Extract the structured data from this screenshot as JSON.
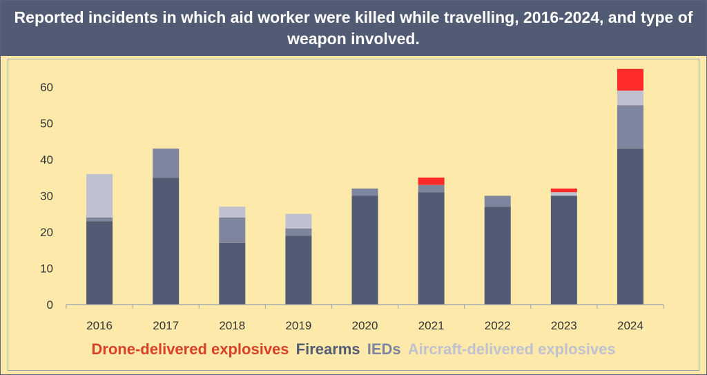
{
  "chart_data": {
    "type": "bar",
    "stacked": true,
    "title": "Reported incidents in which aid worker were killed while travelling, 2016-2024, and type of weapon involved.",
    "categories": [
      "2016",
      "2017",
      "2018",
      "2019",
      "2020",
      "2021",
      "2022",
      "2023",
      "2024"
    ],
    "series": [
      {
        "name": "Firearms",
        "color": "#525b74",
        "values": [
          23,
          35,
          17,
          19,
          30,
          31,
          27,
          30,
          43
        ]
      },
      {
        "name": "IEDs",
        "color": "#7e859f",
        "values": [
          1,
          8,
          7,
          2,
          2,
          2,
          3,
          0,
          12
        ]
      },
      {
        "name": "Aircraft-delivered explosives",
        "color": "#bfc1d1",
        "values": [
          12,
          0,
          3,
          4,
          0,
          0,
          0,
          1,
          4
        ]
      },
      {
        "name": "Drone-delivered explosives",
        "color": "#ff2a2a",
        "values": [
          0,
          0,
          0,
          0,
          0,
          2,
          0,
          1,
          6
        ]
      }
    ],
    "ylim": [
      0,
      65
    ],
    "yticks": [
      0,
      10,
      20,
      30,
      40,
      50,
      60
    ],
    "xlabel": "",
    "ylabel": "",
    "grid": false,
    "legend": {
      "position": "bottom",
      "order": [
        {
          "label": "Drone-delivered explosives",
          "color": "#d8402a"
        },
        {
          "label": "Firearms",
          "color": "#525b74"
        },
        {
          "label": "IEDs",
          "color": "#7e859f"
        },
        {
          "label": "Aircraft-delivered explosives",
          "color": "#bfc1d1"
        }
      ]
    }
  }
}
